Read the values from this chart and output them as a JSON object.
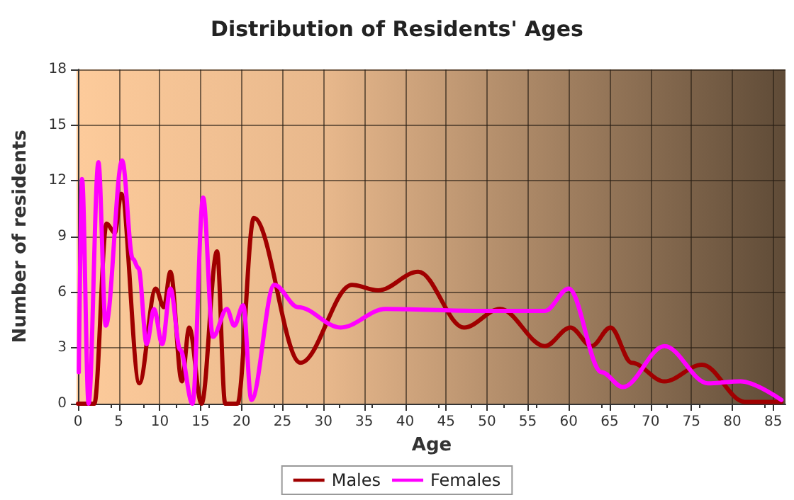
{
  "chart_data": {
    "type": "line",
    "title": "Distribution of Residents' Ages",
    "xlabel": "Age",
    "ylabel": "Number of residents",
    "xlim": [
      0,
      86.5
    ],
    "xticks": [
      0,
      5,
      10,
      15,
      20,
      25,
      30,
      35,
      40,
      45,
      50,
      55,
      60,
      65,
      70,
      75,
      80,
      85
    ],
    "ylim": [
      0,
      18
    ],
    "yticks": [
      0,
      3,
      6,
      9,
      12,
      15,
      18
    ],
    "grid": true,
    "legend": "bottom",
    "marker": "none",
    "line_style": "solid",
    "series": [
      {
        "name": "Males",
        "color": "#a00000",
        "x": [
          0,
          2,
          3.5,
          4.5,
          5.3,
          7.5,
          9.5,
          10.5,
          11.3,
          12.7,
          13.6,
          15.1,
          17,
          18,
          19.5,
          21.5,
          27.2,
          33.5,
          36.7,
          41.6,
          47.2,
          51.6,
          57.1,
          60.2,
          62.8,
          65.1,
          67.7,
          71.7,
          76.3,
          81.5,
          86
        ],
        "values": [
          0,
          0,
          9.7,
          9.2,
          11.3,
          1.1,
          6.2,
          5.2,
          7.1,
          1.2,
          4.1,
          0,
          8.2,
          0,
          0,
          10,
          2.2,
          6.4,
          6.1,
          7.1,
          4.1,
          5.1,
          3.1,
          4.1,
          3.1,
          4.1,
          2.2,
          1.2,
          2.1,
          0.1,
          0.1
        ]
      },
      {
        "name": "Females",
        "color": "#ff00ff",
        "x": [
          0.1,
          0.5,
          1.3,
          2.5,
          3.4,
          5.4,
          6.7,
          7.4,
          8.4,
          9.3,
          10.3,
          11.3,
          12.5,
          14,
          15.3,
          16.5,
          18.2,
          19.1,
          20.2,
          21.2,
          24,
          26.9,
          32.1,
          37.6,
          48.3,
          57.1,
          60,
          64,
          66.6,
          71.7,
          77,
          81,
          86
        ],
        "values": [
          1.7,
          12.1,
          0,
          13,
          4.2,
          13.1,
          7.8,
          7.3,
          3.2,
          5.1,
          3.2,
          6.2,
          2.9,
          0,
          11.1,
          3.6,
          5.1,
          4.2,
          5.3,
          0.2,
          6.4,
          5.2,
          4.1,
          5.1,
          5,
          5,
          6.2,
          1.7,
          0.9,
          3.1,
          1.1,
          1.2,
          0.2
        ]
      }
    ]
  }
}
